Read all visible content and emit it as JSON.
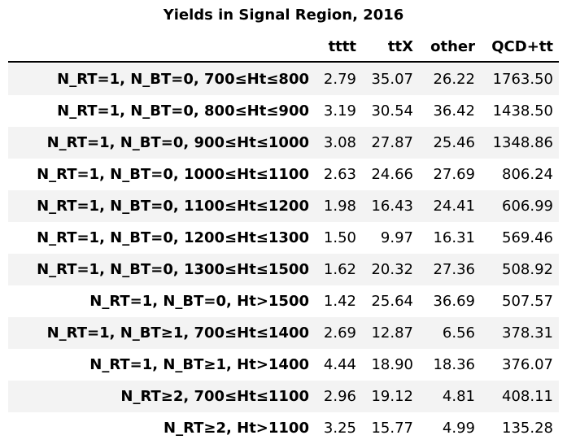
{
  "chart_data": {
    "type": "table",
    "title": "Yields in Signal Region, 2016",
    "columns": [
      "tttt",
      "ttX",
      "other",
      "QCD+tt"
    ],
    "rows": [
      {
        "label": "N_RT=1, N_BT=0, 700≤Ht≤800",
        "values": [
          "2.79",
          "35.07",
          "26.22",
          "1763.50"
        ]
      },
      {
        "label": "N_RT=1, N_BT=0, 800≤Ht≤900",
        "values": [
          "3.19",
          "30.54",
          "36.42",
          "1438.50"
        ]
      },
      {
        "label": "N_RT=1, N_BT=0, 900≤Ht≤1000",
        "values": [
          "3.08",
          "27.87",
          "25.46",
          "1348.86"
        ]
      },
      {
        "label": "N_RT=1, N_BT=0, 1000≤Ht≤1100",
        "values": [
          "2.63",
          "24.66",
          "27.69",
          "806.24"
        ]
      },
      {
        "label": "N_RT=1, N_BT=0, 1100≤Ht≤1200",
        "values": [
          "1.98",
          "16.43",
          "24.41",
          "606.99"
        ]
      },
      {
        "label": "N_RT=1, N_BT=0, 1200≤Ht≤1300",
        "values": [
          "1.50",
          "9.97",
          "16.31",
          "569.46"
        ]
      },
      {
        "label": "N_RT=1, N_BT=0, 1300≤Ht≤1500",
        "values": [
          "1.62",
          "20.32",
          "27.36",
          "508.92"
        ]
      },
      {
        "label": "N_RT=1, N_BT=0, Ht>1500",
        "values": [
          "1.42",
          "25.64",
          "36.69",
          "507.57"
        ]
      },
      {
        "label": "N_RT=1, N_BT≥1, 700≤Ht≤1400",
        "values": [
          "2.69",
          "12.87",
          "6.56",
          "378.31"
        ]
      },
      {
        "label": "N_RT=1, N_BT≥1, Ht>1400",
        "values": [
          "4.44",
          "18.90",
          "18.36",
          "376.07"
        ]
      },
      {
        "label": "N_RT≥2, 700≤Ht≤1100",
        "values": [
          "2.96",
          "19.12",
          "4.81",
          "408.11"
        ]
      },
      {
        "label": "N_RT≥2, Ht>1100",
        "values": [
          "3.25",
          "15.77",
          "4.99",
          "135.28"
        ]
      }
    ]
  }
}
